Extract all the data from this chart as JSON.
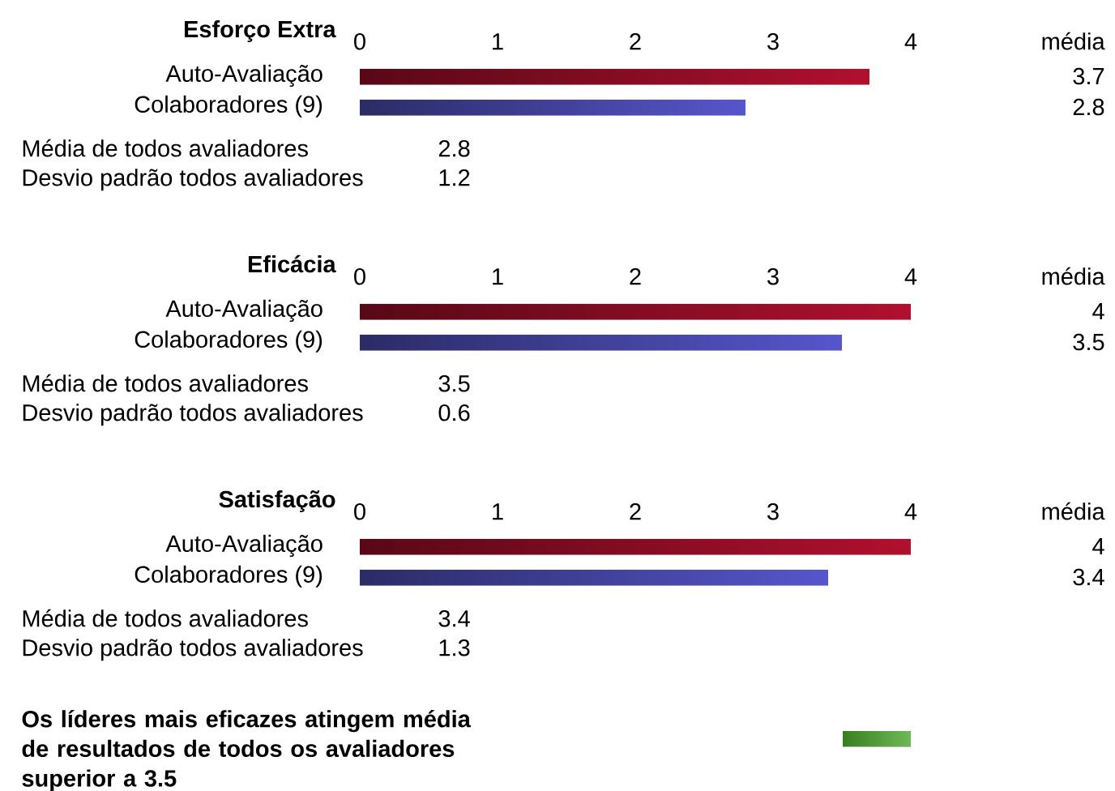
{
  "chart_data": [
    {
      "type": "bar",
      "orientation": "horizontal",
      "title": "Esforço Extra",
      "categories": [
        "Auto-Avaliação",
        "Colaboradores (9)"
      ],
      "values": [
        3.7,
        2.8
      ],
      "colors": [
        "#b0102e",
        "#5656cc"
      ],
      "xlim": [
        0,
        4
      ],
      "xticks": [
        0,
        1,
        2,
        3,
        4
      ],
      "value_labels": [
        "3.7",
        "2.8"
      ],
      "annotations": [
        "média",
        "Média de todos avaliadores",
        "2.8",
        "Desvio padrão todos avaliadores",
        "1.2"
      ]
    },
    {
      "type": "bar",
      "orientation": "horizontal",
      "title": "Eficácia",
      "categories": [
        "Auto-Avaliação",
        "Colaboradores (9)"
      ],
      "values": [
        4.0,
        3.5
      ],
      "colors": [
        "#b0102e",
        "#5656cc"
      ],
      "xlim": [
        0,
        4
      ],
      "xticks": [
        0,
        1,
        2,
        3,
        4
      ],
      "value_labels": [
        "4",
        "3.5"
      ],
      "annotations": [
        "média",
        "Média de todos avaliadores",
        "3.5",
        "Desvio padrão todos avaliadores",
        "0.6"
      ]
    },
    {
      "type": "bar",
      "orientation": "horizontal",
      "title": "Satisfação",
      "categories": [
        "Auto-Avaliação",
        "Colaboradores (9)"
      ],
      "values": [
        4.0,
        3.4
      ],
      "colors": [
        "#b0102e",
        "#5656cc"
      ],
      "xlim": [
        0,
        4
      ],
      "xticks": [
        0,
        1,
        2,
        3,
        4
      ],
      "value_labels": [
        "4",
        "3.4"
      ],
      "annotations": [
        "média",
        "Média de todos avaliadores",
        "3.4",
        "Desvio padrão todos avaliadores",
        "1.3",
        "Os líderes mais eficazes atingem média de resultados de todos os avaliadores superior a 3.5"
      ]
    }
  ]
}
